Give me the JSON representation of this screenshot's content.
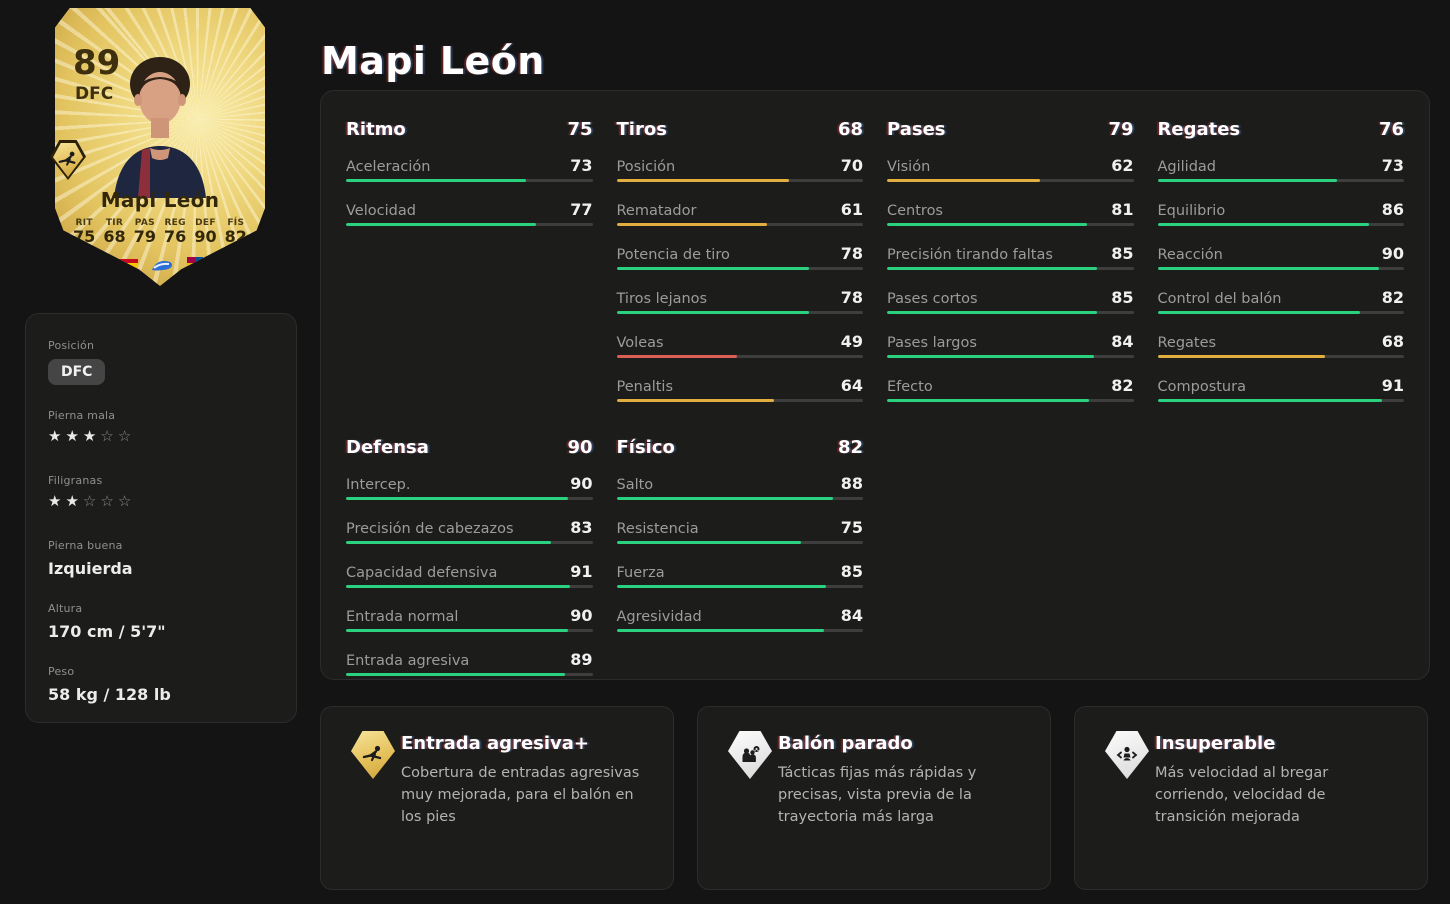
{
  "page": {
    "title": "Mapi León"
  },
  "player": {
    "name": "Mapi León",
    "rating": "89",
    "position": "DFC",
    "card_stats": [
      {
        "label": "RIT",
        "value": "75"
      },
      {
        "label": "TIR",
        "value": "68"
      },
      {
        "label": "PAS",
        "value": "79"
      },
      {
        "label": "REG",
        "value": "76"
      },
      {
        "label": "DEF",
        "value": "90"
      },
      {
        "label": "FÍS",
        "value": "82"
      }
    ],
    "badges": [
      "spain-flag-icon",
      "liga-f-icon",
      "barcelona-crest-icon"
    ],
    "card_playstyle_icon": "slide-tackle-icon"
  },
  "bio": {
    "position_label": "Posición",
    "position_value": "DFC",
    "weak_foot_label": "Pierna mala",
    "weak_foot_stars": 3,
    "skill_moves_label": "Filigranas",
    "skill_moves_stars": 2,
    "preferred_foot_label": "Pierna buena",
    "preferred_foot_value": "Izquierda",
    "height_label": "Altura",
    "height_value": "170 cm / 5'7\"",
    "weight_label": "Peso",
    "weight_value": "58 kg / 128 lb"
  },
  "stat_sections": [
    {
      "title": "Ritmo",
      "total": 75,
      "items": [
        {
          "label": "Aceleración",
          "value": 73
        },
        {
          "label": "Velocidad",
          "value": 77
        }
      ]
    },
    {
      "title": "Tiros",
      "total": 68,
      "items": [
        {
          "label": "Posición",
          "value": 70
        },
        {
          "label": "Rematador",
          "value": 61
        },
        {
          "label": "Potencia de tiro",
          "value": 78
        },
        {
          "label": "Tiros lejanos",
          "value": 78
        },
        {
          "label": "Voleas",
          "value": 49
        },
        {
          "label": "Penaltis",
          "value": 64
        }
      ]
    },
    {
      "title": "Pases",
      "total": 79,
      "items": [
        {
          "label": "Visión",
          "value": 62
        },
        {
          "label": "Centros",
          "value": 81
        },
        {
          "label": "Precisión tirando faltas",
          "value": 85
        },
        {
          "label": "Pases cortos",
          "value": 85
        },
        {
          "label": "Pases largos",
          "value": 84
        },
        {
          "label": "Efecto",
          "value": 82
        }
      ]
    },
    {
      "title": "Regates",
      "total": 76,
      "items": [
        {
          "label": "Agilidad",
          "value": 73
        },
        {
          "label": "Equilibrio",
          "value": 86
        },
        {
          "label": "Reacción",
          "value": 90
        },
        {
          "label": "Control del balón",
          "value": 82
        },
        {
          "label": "Regates",
          "value": 68
        },
        {
          "label": "Compostura",
          "value": 91
        }
      ]
    },
    {
      "title": "Defensa",
      "total": 90,
      "items": [
        {
          "label": "Intercep.",
          "value": 90
        },
        {
          "label": "Precisión de cabezazos",
          "value": 83
        },
        {
          "label": "Capacidad defensiva",
          "value": 91
        },
        {
          "label": "Entrada normal",
          "value": 90
        },
        {
          "label": "Entrada agresiva",
          "value": 89
        }
      ]
    },
    {
      "title": "Físico",
      "total": 82,
      "items": [
        {
          "label": "Salto",
          "value": 88
        },
        {
          "label": "Resistencia",
          "value": 75
        },
        {
          "label": "Fuerza",
          "value": 85
        },
        {
          "label": "Agresividad",
          "value": 84
        }
      ]
    }
  ],
  "playstyles": [
    {
      "name": "Entrada agresiva+",
      "tier": "gold",
      "icon": "slide-tackle-icon",
      "description": "Cobertura de entradas agresivas muy mejorada, para el balón en los pies"
    },
    {
      "name": "Balón parado",
      "tier": "white",
      "icon": "set-piece-icon",
      "description": "Tácticas fijas más rápidas y precisas, vista previa de la trayectoria más larga"
    },
    {
      "name": "Insuperable",
      "tier": "white",
      "icon": "shield-run-icon",
      "description": "Más velocidad al bregar corriendo, velocidad de transición mejorada"
    }
  ],
  "colors": {
    "bar_high": "#2ad17e",
    "bar_mid": "#e2ae3f",
    "bar_low": "#da6055",
    "card_gold": "#e9ce72",
    "panel_bg": "#1c1c1b",
    "page_bg": "#141414"
  }
}
